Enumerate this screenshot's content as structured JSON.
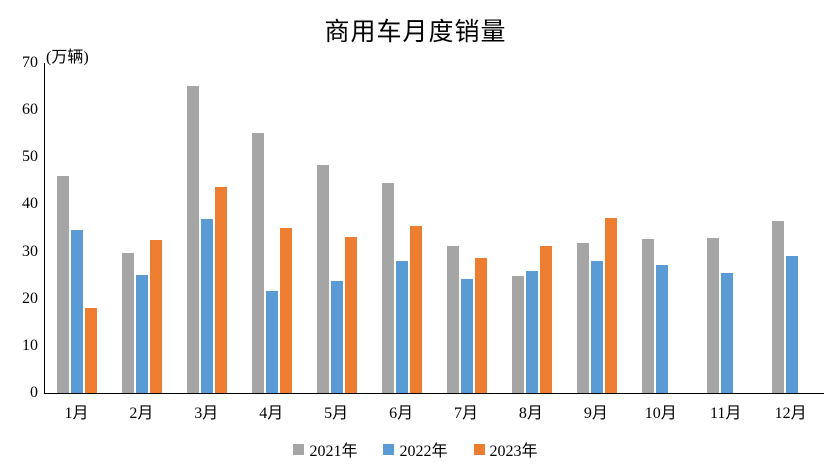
{
  "chart_data": {
    "type": "bar",
    "title": "商用车月度销量",
    "ylabel": "(万辆)",
    "xlabel": "",
    "categories": [
      "1月",
      "2月",
      "3月",
      "4月",
      "5月",
      "6月",
      "7月",
      "8月",
      "9月",
      "10月",
      "11月",
      "12月"
    ],
    "series": [
      {
        "name": "2021年",
        "color": "#A5A5A5",
        "values": [
          46.0,
          29.8,
          65.2,
          55.1,
          48.3,
          44.6,
          31.2,
          24.8,
          31.8,
          32.6,
          32.9,
          36.5
        ]
      },
      {
        "name": "2022年",
        "color": "#5B9BD5",
        "values": [
          34.6,
          25.0,
          37.0,
          21.7,
          23.8,
          28.1,
          24.2,
          25.9,
          28.0,
          27.2,
          25.5,
          29.1
        ]
      },
      {
        "name": "2023年",
        "color": "#ED7D31",
        "values": [
          18.0,
          32.4,
          43.7,
          34.9,
          33.0,
          35.5,
          28.7,
          31.1,
          37.2,
          null,
          null,
          null
        ]
      }
    ],
    "ylim": [
      0,
      70
    ],
    "yticks": [
      0,
      10,
      20,
      30,
      40,
      50,
      60,
      70
    ],
    "grid": false,
    "legend_position": "bottom",
    "colors": {
      "axis": "#000000",
      "background": "#FFFFFF",
      "series_2021": "#A5A5A5",
      "series_2022": "#5B9BD5",
      "series_2023": "#ED7D31"
    }
  }
}
